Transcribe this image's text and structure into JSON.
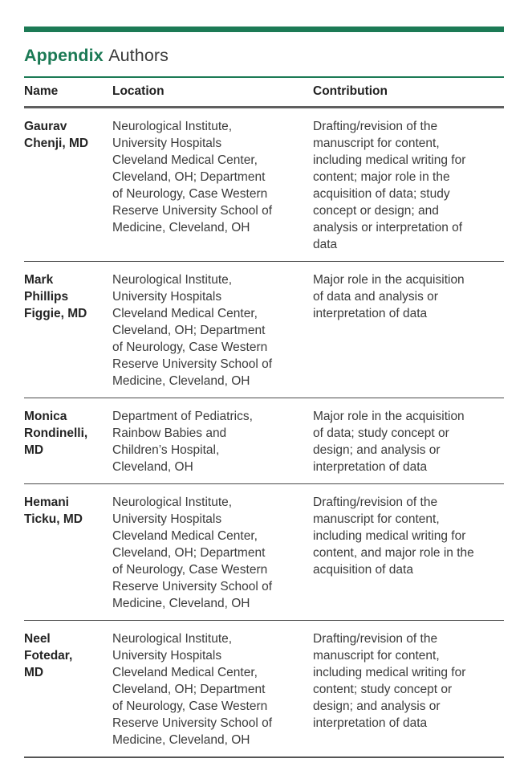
{
  "colors": {
    "accent_green": "#1c7a55",
    "title_text": "#3a3a3a",
    "bold_text": "#212121",
    "body_text": "#3b3b3b",
    "header_rule": "#5f5f5f",
    "row_rule": "#4a4a4a",
    "bottom_rule": "#555555"
  },
  "header": {
    "title_bold": "Appendix",
    "title_regular": "Authors"
  },
  "table": {
    "columns": [
      {
        "label": "Name"
      },
      {
        "label": "Location"
      },
      {
        "label": "Contribution"
      }
    ],
    "rows": [
      {
        "name": "Gaurav\nChenji, MD",
        "location": "Neurological Institute,\nUniversity Hospitals\nCleveland Medical Center,\nCleveland, OH; Department\nof Neurology, Case Western\nReserve University School of\nMedicine, Cleveland, OH",
        "contribution": "Drafting/revision of the\nmanuscript for content,\nincluding medical writing for\ncontent; major role in the\nacquisition of data; study\nconcept or design; and\nanalysis or interpretation of\ndata"
      },
      {
        "name": "Mark\nPhillips\nFiggie, MD",
        "location": "Neurological Institute,\nUniversity Hospitals\nCleveland Medical Center,\nCleveland, OH; Department\nof Neurology, Case Western\nReserve University School of\nMedicine, Cleveland, OH",
        "contribution": "Major role in the acquisition\nof data and analysis or\ninterpretation of data"
      },
      {
        "name": "Monica\nRondinelli,\nMD",
        "location": "Department of Pediatrics,\nRainbow Babies and\nChildren’s Hospital,\nCleveland, OH",
        "contribution": "Major role in the acquisition\nof data; study concept or\ndesign; and analysis or\ninterpretation of data"
      },
      {
        "name": "Hemani\nTicku, MD",
        "location": "Neurological Institute,\nUniversity Hospitals\nCleveland Medical Center,\nCleveland, OH; Department\nof Neurology, Case Western\nReserve University School of\nMedicine, Cleveland, OH",
        "contribution": "Drafting/revision of the\nmanuscript for content,\nincluding medical writing for\ncontent, and major role in the\nacquisition of data"
      },
      {
        "name": "Neel\nFotedar,\nMD",
        "location": "Neurological Institute,\nUniversity Hospitals\nCleveland Medical Center,\nCleveland, OH; Department\nof Neurology, Case Western\nReserve University School of\nMedicine, Cleveland, OH",
        "contribution": "Drafting/revision of the\nmanuscript for content,\nincluding medical writing for\ncontent; study concept or\ndesign; and analysis or\ninterpretation of data"
      }
    ]
  }
}
